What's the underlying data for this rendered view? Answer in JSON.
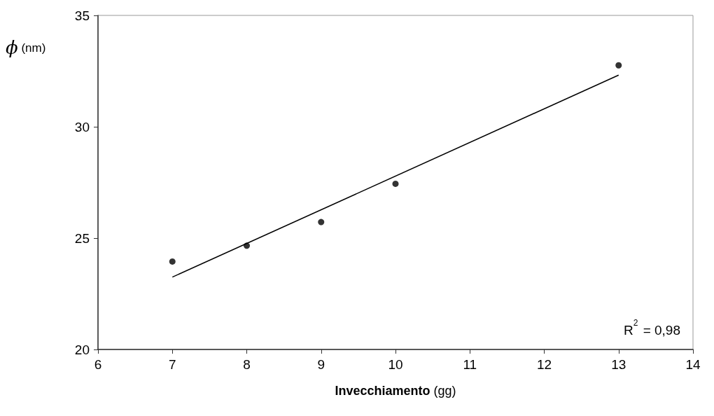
{
  "chart_data": {
    "type": "scatter",
    "xlabel": "Invecchiamento (gg)",
    "ylabel": "ϕ (nm)",
    "annotations": [
      "R$^{2}$ = 0,98"
    ],
    "series": [
      {
        "color": "#000000",
        "marker": "circle",
        "x": [
          7,
          8,
          9,
          10,
          13
        ],
        "values": [
          23.95,
          24.66,
          25.72,
          27.44,
          32.76
        ]
      },
      {
        "type": "line",
        "color": "#000000",
        "marker": "none",
        "x": [
          7,
          13
        ],
        "values": [
          23.25,
          32.32
        ]
      }
    ],
    "xlim": [
      6,
      14
    ],
    "xticks": [
      6,
      7,
      8,
      9,
      10,
      11,
      12,
      13,
      14
    ],
    "ylim": [
      20,
      35
    ],
    "yticks": [
      20,
      25,
      30,
      35
    ],
    "grid": false
  }
}
